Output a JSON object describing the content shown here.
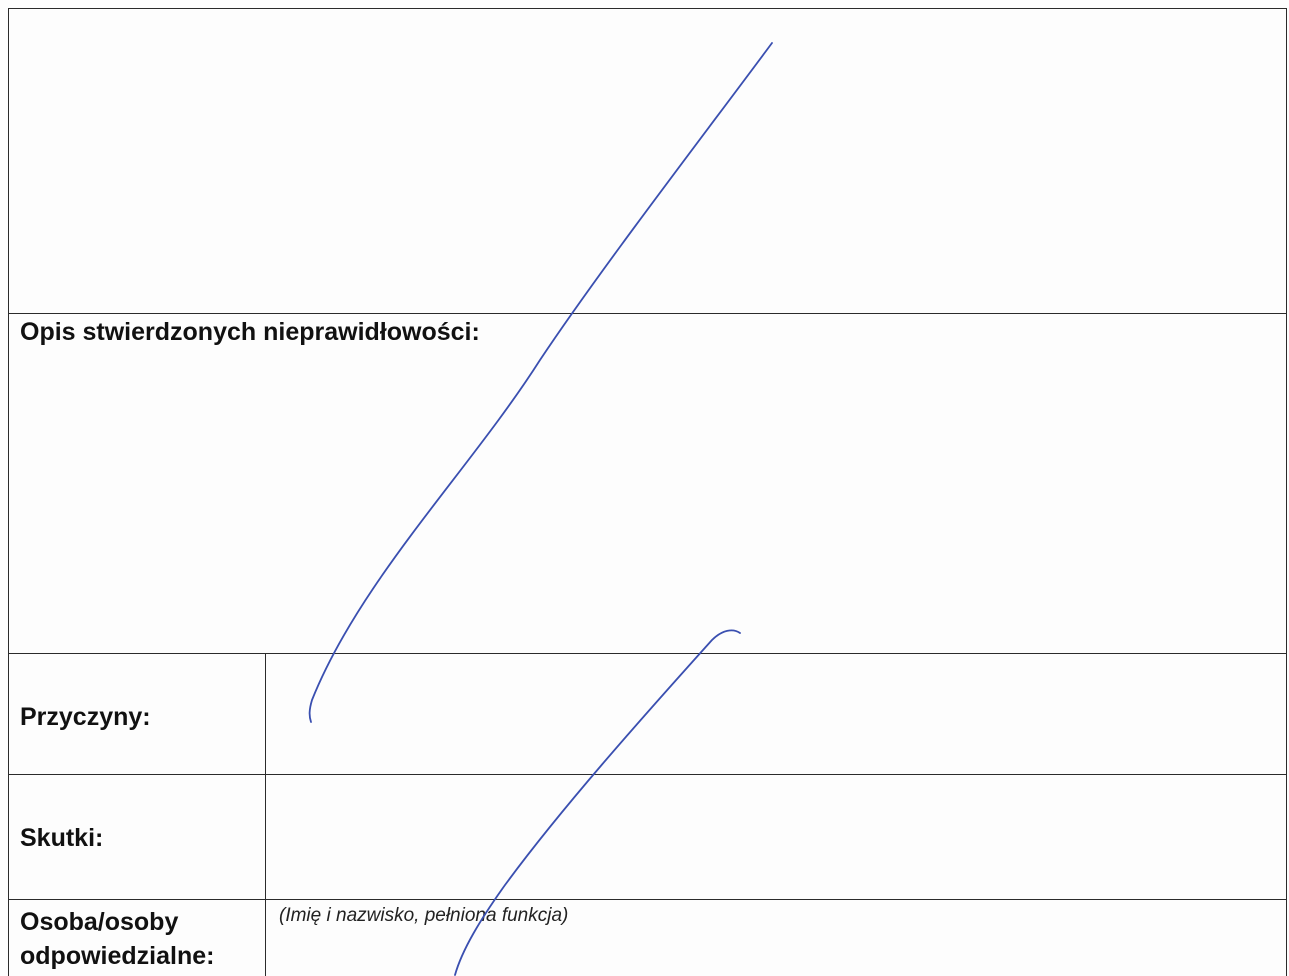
{
  "form": {
    "sections": {
      "description": {
        "label": "Opis stwierdzonych nieprawidłowości:"
      },
      "causes": {
        "label": "Przyczyny:"
      },
      "effects": {
        "label": "Skutki:"
      },
      "responsible": {
        "label_line1": "Osoba/osoby",
        "label_line2": "odpowiedzialne:",
        "hint": "(Imię i nazwisko, pełniona funkcja)"
      }
    }
  },
  "colors": {
    "ink": "#3a4fb0",
    "rule": "#2b2b2b"
  }
}
